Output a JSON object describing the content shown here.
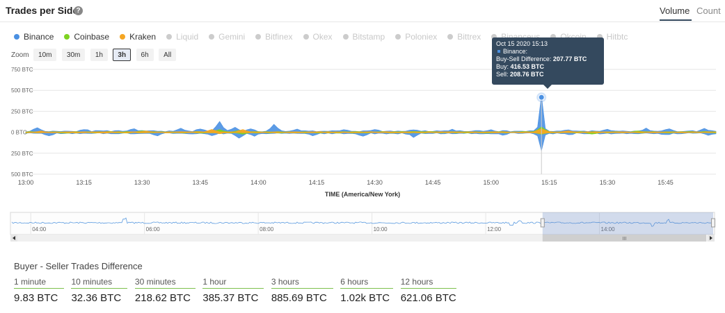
{
  "header": {
    "title": "Trades per Side",
    "tabs": [
      {
        "label": "Volume",
        "active": true
      },
      {
        "label": "Count",
        "active": false
      }
    ]
  },
  "legend": [
    {
      "name": "Binance",
      "color": "#4a90e2",
      "active": true
    },
    {
      "name": "Coinbase",
      "color": "#7ed321",
      "active": true
    },
    {
      "name": "Kraken",
      "color": "#f5a623",
      "active": true
    },
    {
      "name": "Liquid",
      "color": "#cccccc",
      "active": false
    },
    {
      "name": "Gemini",
      "color": "#cccccc",
      "active": false
    },
    {
      "name": "Bitfinex",
      "color": "#cccccc",
      "active": false
    },
    {
      "name": "Okex",
      "color": "#cccccc",
      "active": false
    },
    {
      "name": "Bitstamp",
      "color": "#cccccc",
      "active": false
    },
    {
      "name": "Poloniex",
      "color": "#cccccc",
      "active": false
    },
    {
      "name": "Bittrex",
      "color": "#cccccc",
      "active": false
    },
    {
      "name": "Binanceus",
      "color": "#cccccc",
      "active": false
    },
    {
      "name": "Okcoin",
      "color": "#cccccc",
      "active": false
    },
    {
      "name": "Hitbtc",
      "color": "#cccccc",
      "active": false
    }
  ],
  "zoom": {
    "label": "Zoom",
    "buttons": [
      "10m",
      "30m",
      "1h",
      "3h",
      "6h",
      "All"
    ],
    "active": "3h"
  },
  "chart_data": {
    "type": "area",
    "title": "",
    "xlabel": "TIME (America/New York)",
    "ylabel": "",
    "x_ticks": [
      "13:00",
      "13:15",
      "13:30",
      "13:45",
      "14:00",
      "14:15",
      "14:30",
      "14:45",
      "15:00",
      "15:15",
      "15:30",
      "15:45"
    ],
    "y_ticks": [
      "750 BTC",
      "500 BTC",
      "250 BTC",
      "0 BTC",
      "250 BTC",
      "500 BTC"
    ],
    "y_tick_values": [
      750,
      500,
      250,
      0,
      -250,
      -500
    ],
    "ylim": [
      -500,
      750
    ],
    "x_range_minutes": [
      0,
      178
    ],
    "grid": true,
    "buy_positive_sell_negative": true,
    "series": [
      {
        "name": "Binance",
        "color": "#4a90e2",
        "buy_peaks": [
          [
            3,
            40
          ],
          [
            15,
            25
          ],
          [
            28,
            30
          ],
          [
            40,
            40
          ],
          [
            45,
            25
          ],
          [
            50,
            110
          ],
          [
            54,
            40
          ],
          [
            58,
            25
          ],
          [
            64,
            75
          ],
          [
            70,
            25
          ],
          [
            82,
            20
          ],
          [
            90,
            15
          ],
          [
            100,
            15
          ],
          [
            110,
            20
          ],
          [
            120,
            15
          ],
          [
            132,
            25
          ],
          [
            140,
            20
          ],
          [
            150,
            20
          ],
          [
            160,
            30
          ],
          [
            166,
            30
          ],
          [
            175,
            30
          ]
        ],
        "sell_peaks": [
          [
            6,
            30
          ],
          [
            34,
            25
          ],
          [
            48,
            30
          ],
          [
            55,
            60
          ],
          [
            59,
            35
          ],
          [
            74,
            30
          ],
          [
            87,
            40
          ],
          [
            100,
            45
          ],
          [
            123,
            20
          ],
          [
            140,
            20
          ],
          [
            165,
            20
          ],
          [
            176,
            20
          ]
        ],
        "spike": {
          "minute": 133,
          "buy": 416.53,
          "sell": 208.76
        }
      },
      {
        "name": "Coinbase",
        "color": "#7ed321",
        "buy_peaks": [
          [
            30,
            12
          ],
          [
            50,
            25
          ],
          [
            55,
            15
          ],
          [
            133,
            60
          ],
          [
            158,
            12
          ]
        ],
        "sell_peaks": [
          [
            50,
            10
          ],
          [
            56,
            15
          ],
          [
            133,
            20
          ],
          [
            146,
            15
          ]
        ]
      },
      {
        "name": "Kraken",
        "color": "#f5a623",
        "buy_peaks": [
          [
            4,
            10
          ],
          [
            31,
            12
          ],
          [
            48,
            30
          ],
          [
            56,
            30
          ],
          [
            133,
            40
          ],
          [
            140,
            15
          ]
        ],
        "sell_peaks": [
          [
            20,
            8
          ],
          [
            50,
            10
          ],
          [
            133,
            15
          ]
        ]
      }
    ],
    "highlight_point": {
      "series": "Binance",
      "minute": 133,
      "value": 416.53
    },
    "tooltip": {
      "time": "Oct 15 2020 15:13",
      "series": "Binance:",
      "difference_label": "Buy-Sell Difference:",
      "difference": "207.77 BTC",
      "buy_label": "Buy:",
      "buy": "416.53 BTC",
      "sell_label": "Sell:",
      "sell": "208.76 BTC"
    },
    "navigator": {
      "ticks": [
        "04:00",
        "06:00",
        "08:00",
        "10:00",
        "12:00",
        "14:00"
      ],
      "x_range_hours": [
        3.667,
        16.0
      ],
      "selection_hours": [
        13.0,
        16.0
      ],
      "scrollbar_label": "III"
    }
  },
  "summary": {
    "title": "Buyer - Seller Trades Difference",
    "periods": [
      {
        "label": "1 minute",
        "value": "9.83 BTC"
      },
      {
        "label": "10 minutes",
        "value": "32.36 BTC"
      },
      {
        "label": "30 minutes",
        "value": "218.62 BTC"
      },
      {
        "label": "1 hour",
        "value": "385.37 BTC"
      },
      {
        "label": "3 hours",
        "value": "885.69 BTC"
      },
      {
        "label": "6 hours",
        "value": "1.02k BTC"
      },
      {
        "label": "12 hours",
        "value": "621.06 BTC"
      }
    ]
  }
}
